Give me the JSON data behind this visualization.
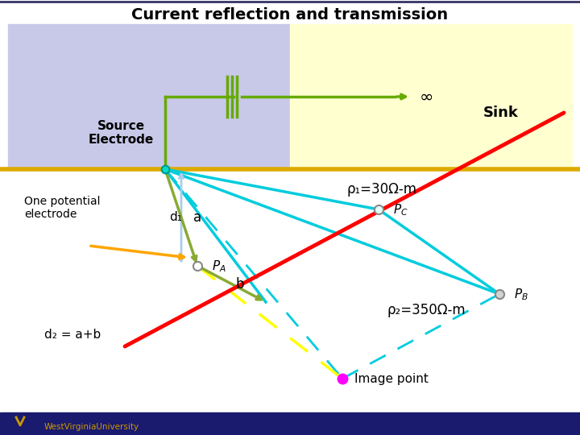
{
  "title": "Current reflection and transmission",
  "bg_left_color": "#c8c8e8",
  "bg_right_color": "#ffffd0",
  "bg_bottom_color": "#ffffff",
  "interface_color": "#ddaa00",
  "title_fontsize": 14,
  "source_label": "Source\nElectrode",
  "sink_label": "Sink",
  "rho1_label": "ρ₁=30Ω-m",
  "rho2_label": "ρ₂=350Ω-m",
  "one_potential_label": "One potential\nelectrode",
  "d1_label": "d₁",
  "a_label": "a",
  "b_label": "b",
  "d2_label": "d₂ = a+b",
  "image_point_label": "Image point",
  "bottom_bar_color": "#1a1a6e",
  "wvu_color": "#cc9900",
  "green_color": "#66aa00",
  "cyan_color": "#00ccdd",
  "olive_color": "#88aa33",
  "lightblue_arrow": "#aaccee"
}
